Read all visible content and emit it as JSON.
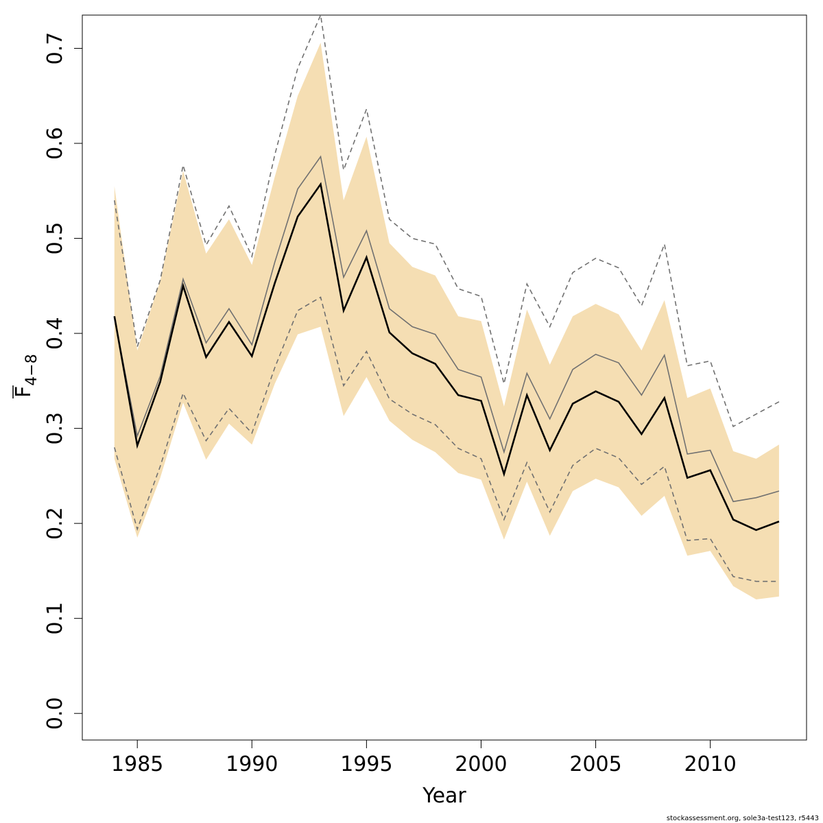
{
  "chart_data": {
    "type": "line",
    "title": "",
    "xlabel": "Year",
    "ylabel": {
      "main": "F",
      "subscript": "4−8"
    },
    "xlim": [
      1982.6,
      2014.2
    ],
    "ylim": [
      -0.028,
      0.735
    ],
    "xticks": [
      1985,
      1990,
      1995,
      2000,
      2005,
      2010
    ],
    "yticks": [
      0.0,
      0.1,
      0.2,
      0.3,
      0.4,
      0.5,
      0.6,
      0.7
    ],
    "ytick_labels": [
      "0.0",
      "0.1",
      "0.2",
      "0.3",
      "0.4",
      "0.5",
      "0.6",
      "0.7"
    ],
    "grid": false,
    "x": [
      1984,
      1985,
      1986,
      1987,
      1988,
      1989,
      1990,
      1991,
      1992,
      1993,
      1994,
      1995,
      1996,
      1997,
      1998,
      1999,
      2000,
      2001,
      2002,
      2003,
      2004,
      2005,
      2006,
      2007,
      2008,
      2009,
      2010,
      2011,
      2012,
      2013
    ],
    "series": [
      {
        "role": "band-upper",
        "color": "#f5deb3",
        "values": [
          0.555,
          0.382,
          0.455,
          0.571,
          0.484,
          0.52,
          0.472,
          0.565,
          0.65,
          0.706,
          0.54,
          0.607,
          0.495,
          0.47,
          0.461,
          0.418,
          0.413,
          0.323,
          0.425,
          0.367,
          0.418,
          0.431,
          0.42,
          0.382,
          0.435,
          0.332,
          0.342,
          0.276,
          0.268,
          0.283
        ]
      },
      {
        "role": "band-lower",
        "color": "#f5deb3",
        "values": [
          0.268,
          0.185,
          0.248,
          0.327,
          0.267,
          0.305,
          0.283,
          0.347,
          0.399,
          0.407,
          0.313,
          0.354,
          0.308,
          0.288,
          0.275,
          0.253,
          0.246,
          0.183,
          0.244,
          0.187,
          0.234,
          0.247,
          0.238,
          0.208,
          0.229,
          0.166,
          0.171,
          0.134,
          0.12,
          0.123
        ]
      },
      {
        "role": "dashed-upper",
        "color": "#707070",
        "values": [
          0.54,
          0.386,
          0.456,
          0.577,
          0.493,
          0.534,
          0.481,
          0.588,
          0.679,
          0.735,
          0.572,
          0.636,
          0.52,
          0.5,
          0.494,
          0.447,
          0.439,
          0.347,
          0.452,
          0.407,
          0.464,
          0.479,
          0.469,
          0.429,
          0.494,
          0.366,
          0.371,
          0.302,
          0.315,
          0.328
        ]
      },
      {
        "role": "dashed-lower",
        "color": "#707070",
        "values": [
          0.28,
          0.194,
          0.26,
          0.337,
          0.287,
          0.321,
          0.295,
          0.364,
          0.424,
          0.438,
          0.345,
          0.381,
          0.331,
          0.315,
          0.304,
          0.279,
          0.268,
          0.204,
          0.264,
          0.212,
          0.261,
          0.279,
          0.269,
          0.241,
          0.26,
          0.182,
          0.184,
          0.144,
          0.139,
          0.139
        ]
      },
      {
        "role": "median",
        "color": "#707070",
        "values": [
          0.417,
          0.292,
          0.355,
          0.457,
          0.39,
          0.426,
          0.388,
          0.475,
          0.552,
          0.586,
          0.459,
          0.508,
          0.426,
          0.407,
          0.399,
          0.362,
          0.354,
          0.275,
          0.358,
          0.31,
          0.362,
          0.378,
          0.369,
          0.335,
          0.377,
          0.273,
          0.277,
          0.223,
          0.227,
          0.234
        ]
      },
      {
        "role": "estimate",
        "color": "#000000",
        "values": [
          0.418,
          0.282,
          0.349,
          0.45,
          0.375,
          0.412,
          0.376,
          0.453,
          0.523,
          0.557,
          0.424,
          0.48,
          0.401,
          0.379,
          0.368,
          0.335,
          0.329,
          0.252,
          0.335,
          0.277,
          0.326,
          0.339,
          0.328,
          0.294,
          0.332,
          0.248,
          0.256,
          0.204,
          0.193,
          0.202
        ]
      }
    ]
  },
  "footer": "stockassessment.org, sole3a-test123, r5443"
}
